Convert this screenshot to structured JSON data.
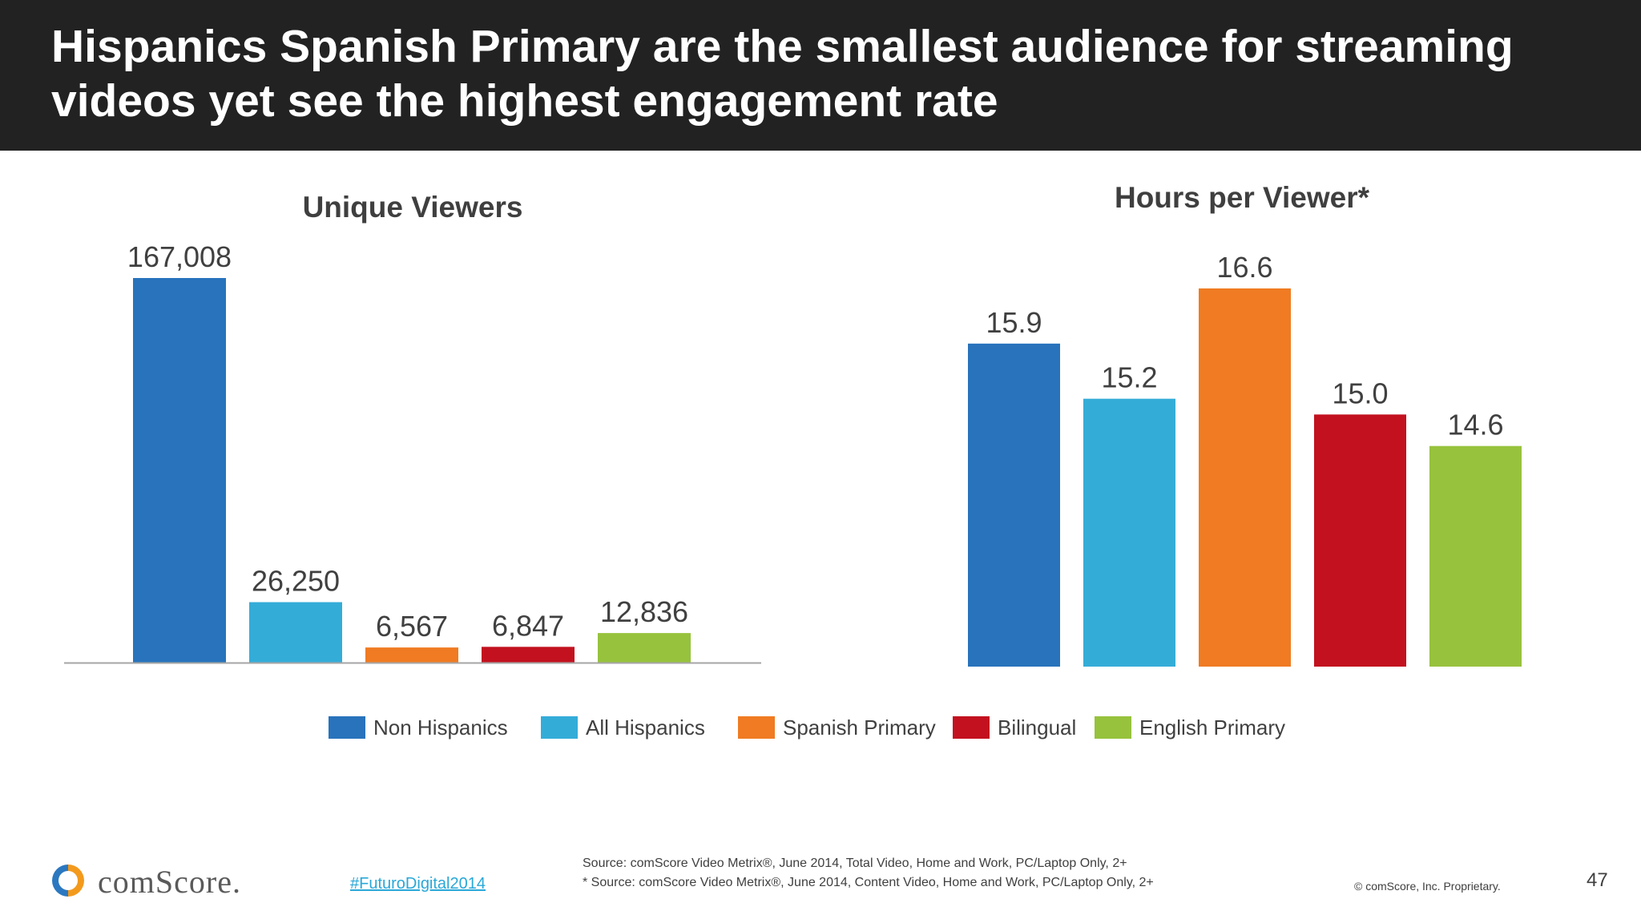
{
  "header": {
    "title": "Hispanics Spanish Primary are the smallest audience for streaming videos yet see the highest engagement rate"
  },
  "colors": {
    "non_hispanics": "#2873bc",
    "all_hispanics": "#34acd8",
    "spanish_primary": "#f07b22",
    "bilingual": "#c3111f",
    "english_primary": "#97c23d"
  },
  "chart_data": [
    {
      "type": "bar",
      "title": "Unique Viewers",
      "categories": [
        "Non Hispanics",
        "All Hispanics",
        "Spanish Primary",
        "Bilingual",
        "English Primary"
      ],
      "values": [
        167008,
        26250,
        6567,
        6847,
        12836
      ],
      "value_labels": [
        "167,008",
        "26,250",
        "6,567",
        "6,847",
        "12,836"
      ],
      "ylim": [
        0,
        167008
      ]
    },
    {
      "type": "bar",
      "title": "Hours per Viewer*",
      "categories": [
        "Non Hispanics",
        "All Hispanics",
        "Spanish Primary",
        "Bilingual",
        "English Primary"
      ],
      "values": [
        15.9,
        15.2,
        16.6,
        15.0,
        14.6
      ],
      "value_labels": [
        "15.9",
        "15.2",
        "16.6",
        "15.0",
        "14.6"
      ],
      "ylim": [
        11.8,
        16.6
      ]
    }
  ],
  "legend": [
    {
      "label": "Non Hispanics",
      "color": "#2873bc"
    },
    {
      "label": "All Hispanics",
      "color": "#34acd8"
    },
    {
      "label": "Spanish Primary",
      "color": "#f07b22"
    },
    {
      "label": "Bilingual",
      "color": "#c3111f"
    },
    {
      "label": "English Primary",
      "color": "#97c23d"
    }
  ],
  "footer": {
    "logo_text": "comScore.",
    "hashtag": "#FuturoDigital2014",
    "source_1": "Source: comScore Video Metrix®, June 2014, Total Video, Home and Work, PC/Laptop Only, 2+",
    "source_2": "* Source: comScore Video Metrix®, June 2014, Content Video, Home and Work, PC/Laptop Only, 2+",
    "copyright": "© comScore, Inc. Proprietary.",
    "page_number": "47"
  }
}
